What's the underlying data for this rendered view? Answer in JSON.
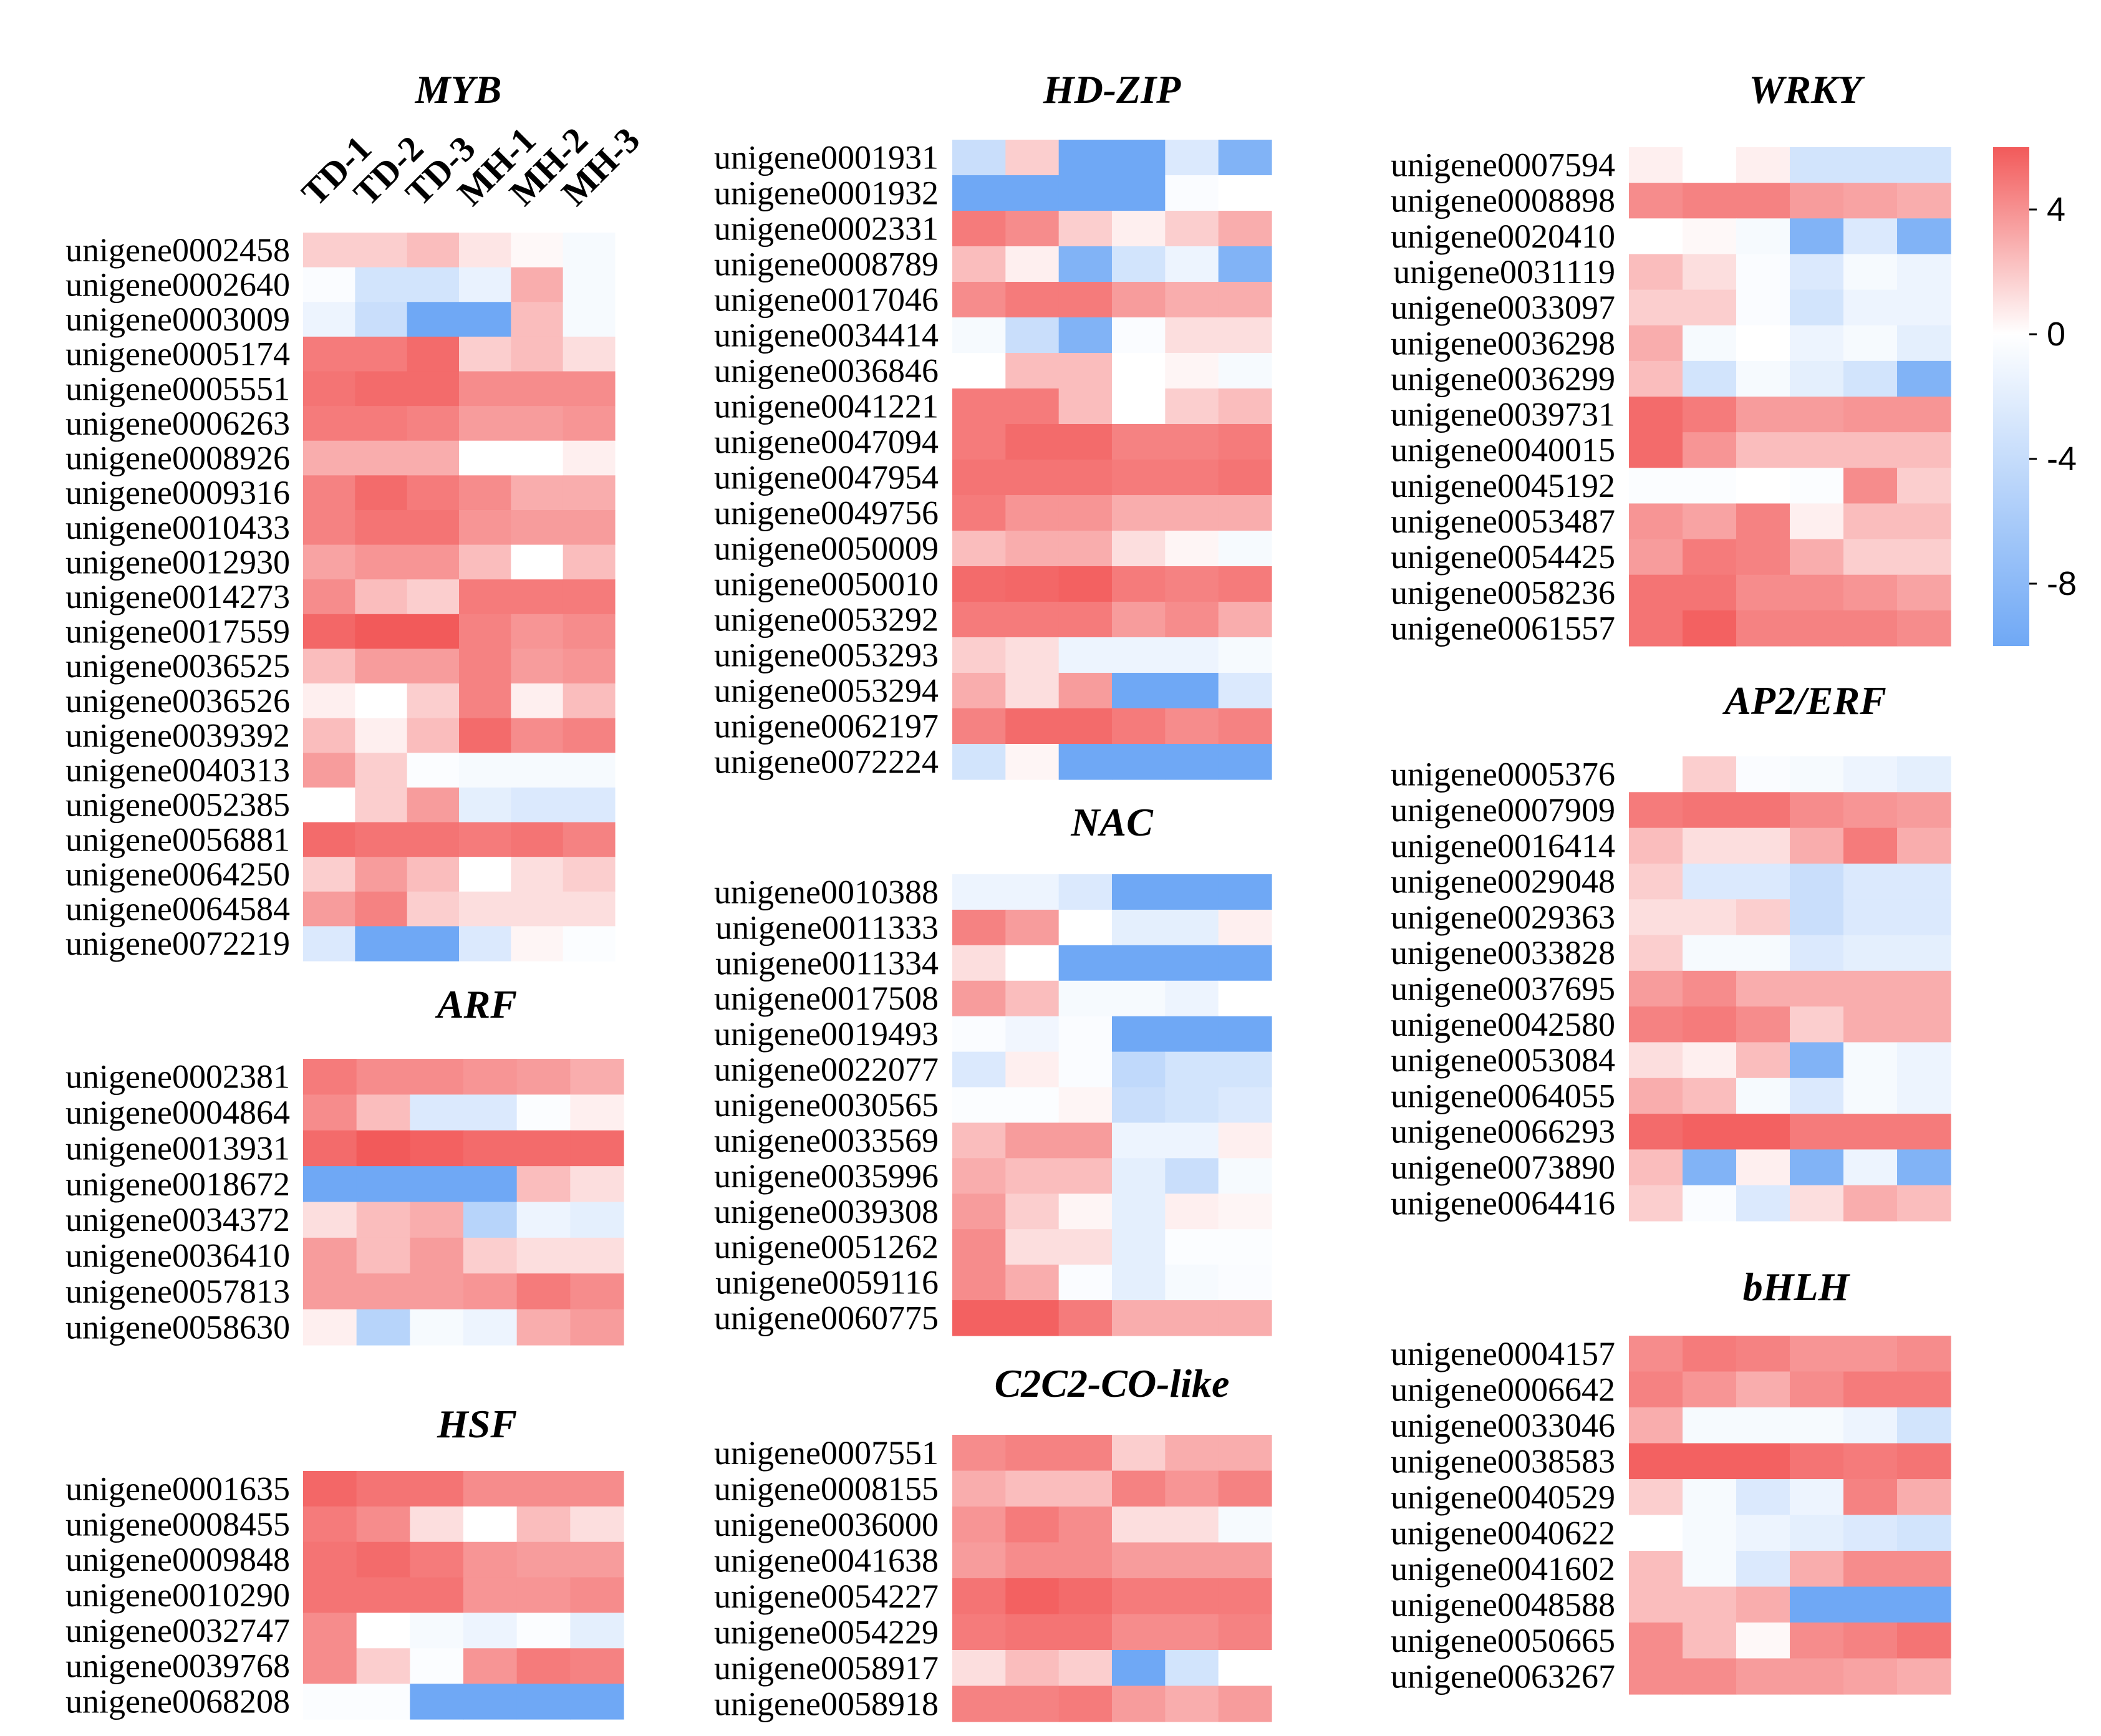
{
  "colors": {
    "low": "#6fa8f5",
    "mid": "#ffffff",
    "high": "#f25a5a"
  },
  "chart_data": [
    {
      "type": "heatmap",
      "title": "MYB",
      "columns": [
        "TD-1",
        "TD-2",
        "TD-3",
        "MH-1",
        "MH-2",
        "MH-3"
      ],
      "rows": [
        "unigene0002458",
        "unigene0002640",
        "unigene0003009",
        "unigene0005174",
        "unigene0005551",
        "unigene0006263",
        "unigene0008926",
        "unigene0009316",
        "unigene0010433",
        "unigene0012930",
        "unigene0014273",
        "unigene0017559",
        "unigene0036525",
        "unigene0036526",
        "unigene0039392",
        "unigene0040313",
        "unigene0052385",
        "unigene0056881",
        "unigene0064250",
        "unigene0064584",
        "unigene0072219"
      ],
      "values": [
        [
          1.5,
          1.5,
          2.0,
          0.8,
          0.2,
          -0.5
        ],
        [
          -0.3,
          -2.5,
          -2.5,
          -1.2,
          2.5,
          -0.5
        ],
        [
          -1.0,
          -3.0,
          -8.0,
          -8.0,
          2.0,
          -0.5
        ],
        [
          4.0,
          4.0,
          4.5,
          1.5,
          2.0,
          1.0
        ],
        [
          4.2,
          4.5,
          4.5,
          3.5,
          3.5,
          3.5
        ],
        [
          4.0,
          4.0,
          3.8,
          3.0,
          3.0,
          3.2
        ],
        [
          2.5,
          2.5,
          2.5,
          0.0,
          0.0,
          0.5
        ],
        [
          3.8,
          4.5,
          4.0,
          3.5,
          2.5,
          2.5
        ],
        [
          3.8,
          4.2,
          4.2,
          3.2,
          3.0,
          3.0
        ],
        [
          2.8,
          3.2,
          3.2,
          2.0,
          0.0,
          2.0
        ],
        [
          3.5,
          2.0,
          1.5,
          4.0,
          4.0,
          4.0
        ],
        [
          4.6,
          5.0,
          5.0,
          3.8,
          3.2,
          3.5
        ],
        [
          2.0,
          3.0,
          3.0,
          3.8,
          3.0,
          3.2
        ],
        [
          0.5,
          0.0,
          1.5,
          3.8,
          0.5,
          2.0
        ],
        [
          2.0,
          0.5,
          2.0,
          4.5,
          3.5,
          3.8
        ],
        [
          3.0,
          1.5,
          -0.2,
          -0.5,
          -0.5,
          -0.5
        ],
        [
          0.0,
          1.5,
          3.0,
          -1.5,
          -2.0,
          -2.0
        ],
        [
          4.5,
          4.2,
          4.2,
          4.0,
          4.2,
          3.8
        ],
        [
          1.5,
          3.0,
          2.0,
          0.0,
          1.0,
          1.5
        ],
        [
          3.0,
          3.8,
          1.5,
          1.0,
          1.0,
          1.0
        ],
        [
          -2.0,
          -8.0,
          -8.0,
          -2.0,
          0.3,
          -0.2
        ]
      ]
    },
    {
      "type": "heatmap",
      "title": "ARF",
      "columns": [
        "TD-1",
        "TD-2",
        "TD-3",
        "MH-1",
        "MH-2",
        "MH-3"
      ],
      "rows": [
        "unigene0002381",
        "unigene0004864",
        "unigene0013931",
        "unigene0018672",
        "unigene0034372",
        "unigene0036410",
        "unigene0057813",
        "unigene0058630"
      ],
      "values": [
        [
          4.0,
          3.5,
          3.5,
          3.2,
          3.0,
          2.5
        ],
        [
          3.5,
          2.0,
          -2.0,
          -2.0,
          -0.2,
          0.5
        ],
        [
          4.5,
          5.0,
          4.8,
          4.5,
          4.5,
          4.5
        ],
        [
          -8.0,
          -8.0,
          -8.0,
          -8.0,
          2.0,
          1.0
        ],
        [
          1.0,
          2.0,
          2.5,
          -4.0,
          -1.0,
          -1.5
        ],
        [
          3.0,
          2.0,
          3.0,
          1.5,
          1.0,
          1.0
        ],
        [
          3.0,
          3.0,
          3.0,
          3.2,
          4.0,
          3.5
        ],
        [
          0.5,
          -4.0,
          -0.5,
          -1.0,
          2.5,
          3.0
        ]
      ]
    },
    {
      "type": "heatmap",
      "title": "HSF",
      "columns": [
        "TD-1",
        "TD-2",
        "TD-3",
        "MH-1",
        "MH-2",
        "MH-3"
      ],
      "rows": [
        "unigene0001635",
        "unigene0008455",
        "unigene0009848",
        "unigene0010290",
        "unigene0032747",
        "unigene0039768",
        "unigene0068208"
      ],
      "values": [
        [
          4.6,
          4.2,
          4.2,
          3.5,
          3.5,
          3.5
        ],
        [
          4.0,
          3.5,
          1.0,
          0.0,
          2.0,
          1.0
        ],
        [
          4.2,
          4.5,
          4.0,
          3.2,
          3.0,
          3.0
        ],
        [
          4.2,
          4.2,
          4.2,
          3.2,
          3.2,
          3.5
        ],
        [
          3.5,
          0.0,
          -0.5,
          -1.0,
          -0.2,
          -1.5
        ],
        [
          3.5,
          1.5,
          -0.2,
          3.2,
          4.0,
          3.8
        ],
        [
          -0.2,
          -0.2,
          -8.0,
          -8.0,
          -8.0,
          -8.0
        ]
      ]
    },
    {
      "type": "heatmap",
      "title": "HD-ZIP",
      "columns": [
        "TD-1",
        "TD-2",
        "TD-3",
        "MH-1",
        "MH-2",
        "MH-3"
      ],
      "rows": [
        "unigene0001931",
        "unigene0001932",
        "unigene0002331",
        "unigene0008789",
        "unigene0017046",
        "unigene0034414",
        "unigene0036846",
        "unigene0041221",
        "unigene0047094",
        "unigene0047954",
        "unigene0049756",
        "unigene0050009",
        "unigene0050010",
        "unigene0053292",
        "unigene0053293",
        "unigene0053294",
        "unigene0062197",
        "unigene0072224"
      ],
      "values": [
        [
          -3.0,
          1.5,
          -8.0,
          -8.0,
          -2.0,
          -7.0
        ],
        [
          -8.0,
          -8.0,
          -8.0,
          -8.0,
          -0.3,
          0.0
        ],
        [
          4.0,
          3.5,
          1.5,
          0.5,
          1.5,
          2.5
        ],
        [
          2.0,
          0.5,
          -7.0,
          -2.5,
          -1.0,
          -7.0
        ],
        [
          3.5,
          4.0,
          4.0,
          3.0,
          2.5,
          2.5
        ],
        [
          -0.5,
          -3.0,
          -7.0,
          -0.3,
          1.0,
          1.0
        ],
        [
          0.0,
          2.0,
          2.0,
          0.0,
          0.3,
          -0.5
        ],
        [
          4.0,
          4.0,
          2.0,
          0.0,
          1.5,
          2.0
        ],
        [
          4.0,
          4.5,
          4.5,
          3.8,
          3.8,
          4.0
        ],
        [
          4.2,
          4.2,
          4.2,
          4.0,
          4.0,
          4.2
        ],
        [
          4.0,
          3.2,
          3.2,
          2.5,
          2.5,
          2.5
        ],
        [
          2.0,
          2.5,
          2.5,
          1.0,
          0.3,
          -0.5
        ],
        [
          4.5,
          4.6,
          4.8,
          4.0,
          3.8,
          4.0
        ],
        [
          4.0,
          4.0,
          4.0,
          3.0,
          3.5,
          2.5
        ],
        [
          1.5,
          1.0,
          -1.0,
          -1.0,
          -1.0,
          -0.5
        ],
        [
          2.5,
          1.0,
          3.0,
          -8.0,
          -8.0,
          -2.0
        ],
        [
          3.8,
          4.5,
          4.5,
          4.0,
          3.5,
          3.8
        ],
        [
          -2.5,
          0.3,
          -8.0,
          -8.0,
          -8.0,
          -8.0
        ]
      ]
    },
    {
      "type": "heatmap",
      "title": "NAC",
      "columns": [
        "TD-1",
        "TD-2",
        "TD-3",
        "MH-1",
        "MH-2",
        "MH-3"
      ],
      "rows": [
        "unigene0010388",
        "unigene0011333",
        "unigene0011334",
        "unigene0017508",
        "unigene0019493",
        "unigene0022077",
        "unigene0030565",
        "unigene0033569",
        "unigene0035996",
        "unigene0039308",
        "unigene0051262",
        "unigene0059116",
        "unigene0060775"
      ],
      "values": [
        [
          -1.0,
          -1.0,
          -2.0,
          -8.0,
          -8.0,
          -8.0
        ],
        [
          3.8,
          3.0,
          0.0,
          -1.5,
          -1.5,
          0.5
        ],
        [
          1.0,
          0.0,
          -8.0,
          -8.0,
          -8.0,
          -8.0
        ],
        [
          3.0,
          2.0,
          -0.5,
          -0.5,
          -1.0,
          0.0
        ],
        [
          -0.3,
          -0.8,
          -0.3,
          -8.0,
          -8.0,
          -8.0
        ],
        [
          -2.0,
          0.5,
          -0.3,
          -3.5,
          -2.5,
          -2.5
        ],
        [
          -0.2,
          -0.2,
          0.3,
          -3.0,
          -2.5,
          -2.0
        ],
        [
          2.0,
          3.0,
          3.0,
          -1.0,
          -1.0,
          0.5
        ],
        [
          2.5,
          2.0,
          2.0,
          -1.5,
          -3.0,
          -0.5
        ],
        [
          3.0,
          1.5,
          0.3,
          -1.5,
          0.5,
          0.3
        ],
        [
          3.5,
          1.0,
          1.0,
          -1.5,
          -0.2,
          -0.2
        ],
        [
          3.5,
          2.5,
          -0.3,
          -1.5,
          -0.5,
          -0.3
        ],
        [
          4.8,
          4.8,
          4.0,
          2.5,
          2.5,
          2.5
        ]
      ]
    },
    {
      "type": "heatmap",
      "title": "C2C2-CO-like",
      "columns": [
        "TD-1",
        "TD-2",
        "TD-3",
        "MH-1",
        "MH-2",
        "MH-3"
      ],
      "rows": [
        "unigene0007551",
        "unigene0008155",
        "unigene0036000",
        "unigene0041638",
        "unigene0054227",
        "unigene0054229",
        "unigene0058917",
        "unigene0058918"
      ],
      "values": [
        [
          3.5,
          3.8,
          3.8,
          1.5,
          2.5,
          2.5
        ],
        [
          2.5,
          2.0,
          2.0,
          3.8,
          3.2,
          3.8
        ],
        [
          3.2,
          4.0,
          3.5,
          1.0,
          1.0,
          -0.5
        ],
        [
          3.0,
          3.5,
          3.5,
          3.0,
          3.0,
          3.0
        ],
        [
          4.2,
          4.8,
          4.5,
          4.0,
          4.0,
          4.0
        ],
        [
          4.0,
          4.2,
          4.2,
          3.5,
          3.5,
          3.8
        ],
        [
          1.0,
          2.0,
          1.5,
          -8.0,
          -2.5,
          0.0
        ],
        [
          3.8,
          3.8,
          4.0,
          3.0,
          2.5,
          3.0
        ]
      ]
    },
    {
      "type": "heatmap",
      "title": "WRKY",
      "columns": [
        "TD-1",
        "TD-2",
        "TD-3",
        "MH-1",
        "MH-2",
        "MH-3"
      ],
      "rows": [
        "unigene0007594",
        "unigene0008898",
        "unigene0020410",
        "unigene0031119",
        "unigene0033097",
        "unigene0036298",
        "unigene0036299",
        "unigene0039731",
        "unigene0040015",
        "unigene0045192",
        "unigene0053487",
        "unigene0054425",
        "unigene0058236",
        "unigene0061557"
      ],
      "values": [
        [
          0.5,
          0.0,
          0.5,
          -2.5,
          -2.5,
          -2.5
        ],
        [
          3.5,
          3.8,
          3.8,
          3.0,
          2.8,
          2.5
        ],
        [
          0.0,
          0.2,
          -0.5,
          -7.0,
          -2.0,
          -7.0
        ],
        [
          2.0,
          1.0,
          -0.3,
          -2.0,
          -0.5,
          -1.0
        ],
        [
          1.5,
          1.5,
          -0.3,
          -2.5,
          -1.0,
          -1.0
        ],
        [
          2.5,
          -0.5,
          0.0,
          -1.0,
          -0.5,
          -1.5
        ],
        [
          2.0,
          -2.5,
          -0.5,
          -1.5,
          -2.5,
          -7.0
        ],
        [
          4.5,
          4.0,
          3.0,
          3.0,
          3.2,
          3.2
        ],
        [
          4.5,
          3.2,
          2.0,
          2.0,
          2.0,
          2.0
        ],
        [
          -0.2,
          -0.2,
          0.0,
          -0.2,
          3.5,
          1.5
        ],
        [
          3.2,
          2.8,
          3.8,
          0.5,
          2.0,
          2.0
        ],
        [
          3.0,
          4.0,
          3.8,
          2.5,
          1.5,
          1.5
        ],
        [
          4.2,
          4.2,
          3.5,
          3.5,
          3.2,
          2.8
        ],
        [
          4.2,
          4.8,
          3.8,
          3.8,
          3.8,
          3.5
        ]
      ]
    },
    {
      "type": "heatmap",
      "title": "AP2/ERF",
      "columns": [
        "TD-1",
        "TD-2",
        "TD-3",
        "MH-1",
        "MH-2",
        "MH-3"
      ],
      "rows": [
        "unigene0005376",
        "unigene0007909",
        "unigene0016414",
        "unigene0029048",
        "unigene0029363",
        "unigene0033828",
        "unigene0037695",
        "unigene0042580",
        "unigene0053084",
        "unigene0064055",
        "unigene0066293",
        "unigene0073890",
        "unigene0064416"
      ],
      "values": [
        [
          0.0,
          1.5,
          -0.3,
          -0.5,
          -1.0,
          -1.5
        ],
        [
          4.0,
          4.2,
          4.2,
          3.5,
          3.2,
          3.0
        ],
        [
          2.0,
          1.0,
          1.0,
          2.5,
          4.0,
          2.5
        ],
        [
          1.5,
          -2.0,
          -2.0,
          -3.0,
          -2.0,
          -2.0
        ],
        [
          1.0,
          1.0,
          1.5,
          -3.0,
          -2.0,
          -2.0
        ],
        [
          1.5,
          -0.5,
          -0.5,
          -2.0,
          -1.5,
          -1.5
        ],
        [
          3.0,
          3.5,
          2.5,
          2.5,
          2.5,
          2.5
        ],
        [
          3.8,
          4.0,
          3.5,
          1.5,
          2.5,
          2.5
        ],
        [
          1.0,
          0.5,
          2.0,
          -7.0,
          -0.5,
          -1.0
        ],
        [
          2.5,
          2.0,
          -0.5,
          -2.0,
          -0.5,
          -1.0
        ],
        [
          4.5,
          4.8,
          4.8,
          4.0,
          4.0,
          4.0
        ],
        [
          2.0,
          -7.0,
          0.5,
          -7.0,
          -1.0,
          -7.0
        ],
        [
          1.5,
          -0.3,
          -2.0,
          1.0,
          2.5,
          2.0
        ]
      ]
    },
    {
      "type": "heatmap",
      "title": "bHLH",
      "columns": [
        "TD-1",
        "TD-2",
        "TD-3",
        "MH-1",
        "MH-2",
        "MH-3"
      ],
      "rows": [
        "unigene0004157",
        "unigene0006642",
        "unigene0033046",
        "unigene0038583",
        "unigene0040529",
        "unigene0040622",
        "unigene0041602",
        "unigene0048588",
        "unigene0050665",
        "unigene0063267"
      ],
      "values": [
        [
          3.5,
          4.0,
          3.8,
          3.2,
          3.2,
          3.5
        ],
        [
          3.8,
          3.2,
          2.5,
          3.5,
          4.0,
          4.0
        ],
        [
          2.5,
          -0.5,
          -0.5,
          -0.5,
          -1.0,
          -2.5
        ],
        [
          4.8,
          4.8,
          4.8,
          4.2,
          4.0,
          4.2
        ],
        [
          1.5,
          -0.5,
          -2.0,
          -1.0,
          3.8,
          2.5
        ],
        [
          0.0,
          -0.5,
          -1.0,
          -1.5,
          -2.0,
          -2.5
        ],
        [
          2.0,
          -0.5,
          -2.0,
          2.5,
          3.5,
          3.5
        ],
        [
          2.0,
          2.0,
          2.5,
          -8.0,
          -8.0,
          -8.0
        ],
        [
          3.5,
          2.0,
          0.2,
          3.5,
          3.8,
          4.2
        ],
        [
          3.5,
          3.5,
          3.0,
          3.0,
          2.8,
          2.5
        ]
      ]
    }
  ],
  "colorbar": {
    "ticks": [
      4,
      0,
      -4,
      -8
    ],
    "range": [
      -10,
      6
    ]
  }
}
